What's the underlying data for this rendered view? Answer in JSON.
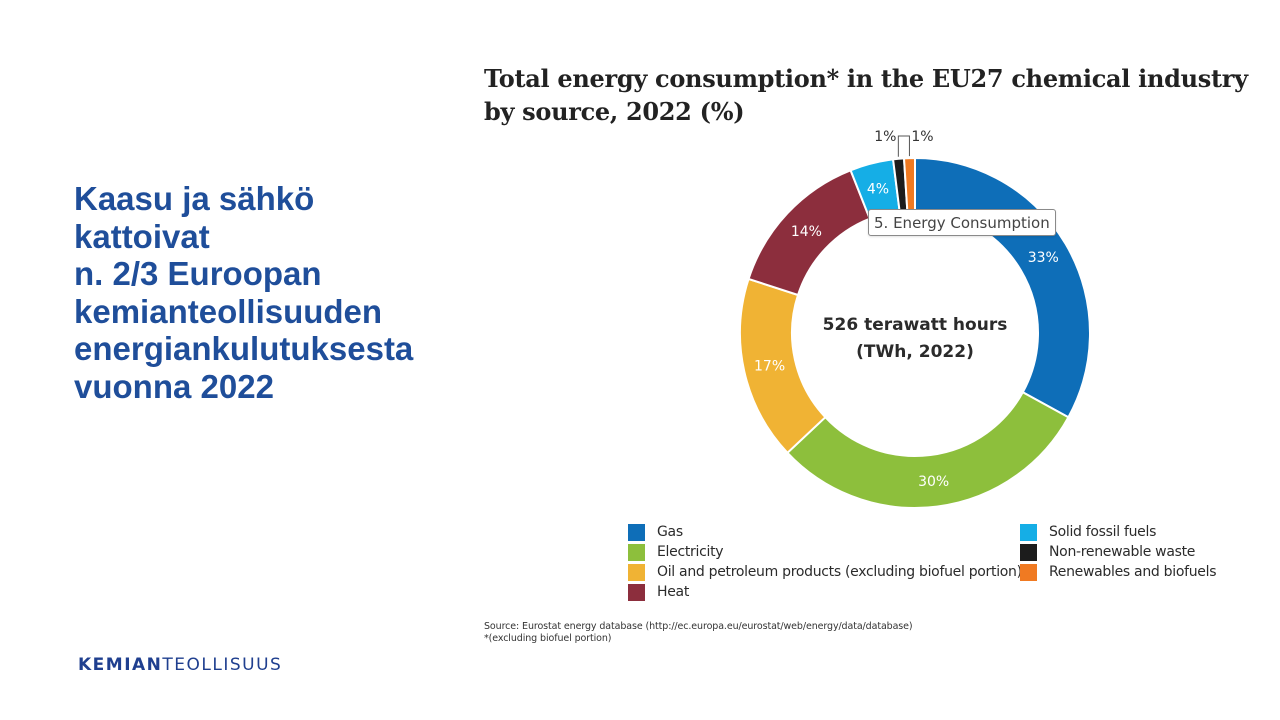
{
  "slide": {
    "headline_lines": [
      "Kaasu ja sähkö",
      "kattoivat",
      "n. 2/3 Euroopan",
      "kemianteollisuuden",
      "energiankulutuksesta",
      "vuonna 2022"
    ],
    "logo": {
      "bold": "KEMIAN",
      "regular": "TEOLLISUUS",
      "color": "#1f3f8f"
    },
    "headline_color": "#1f4e9a"
  },
  "chart_data": {
    "type": "pie",
    "variant": "donut",
    "title_lines": [
      "Total energy consumption* in the EU27 chemical industry",
      "by source, 2022 (%)"
    ],
    "center_label": [
      "526 terawatt hours",
      "(TWh, 2022)"
    ],
    "units": "%",
    "slices": [
      {
        "name": "Gas",
        "value": 33,
        "label": "33%",
        "color": "#0e6eb8"
      },
      {
        "name": "Electricity",
        "value": 30,
        "label": "30%",
        "color": "#8dbf3c"
      },
      {
        "name": "Oil and petroleum products (excluding biofuel portion)",
        "value": 17,
        "label": "17%",
        "color": "#f0b334"
      },
      {
        "name": "Heat",
        "value": 14,
        "label": "14%",
        "color": "#8c2e3d"
      },
      {
        "name": "Solid fossil fuels",
        "value": 4,
        "label": "4%",
        "color": "#15aee6"
      },
      {
        "name": "Non-renewable waste",
        "value": 1,
        "label": "1%",
        "color": "#1c1c1c"
      },
      {
        "name": "Renewables and biofuels",
        "value": 1,
        "label": "1%",
        "color": "#f07a22"
      }
    ],
    "tooltip": "5. Energy Consumption",
    "legend": {
      "left": [
        "Gas",
        "Electricity",
        "Oil and petroleum products (excluding biofuel portion)",
        "Heat"
      ],
      "right": [
        "Solid fossil fuels",
        "Non-renewable waste",
        "Renewables and biofuels"
      ]
    },
    "source_lines": [
      "Source: Eurostat energy database (http://ec.europa.eu/eurostat/web/energy/data/database)",
      "*(excluding biofuel portion)"
    ]
  }
}
